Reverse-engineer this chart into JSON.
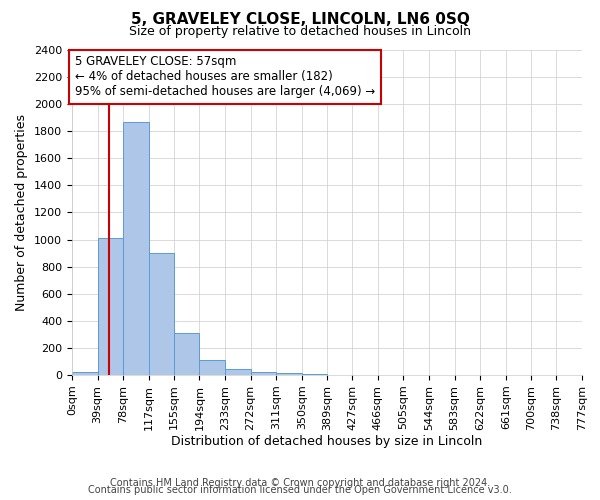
{
  "title": "5, GRAVELEY CLOSE, LINCOLN, LN6 0SQ",
  "subtitle": "Size of property relative to detached houses in Lincoln",
  "xlabel": "Distribution of detached houses by size in Lincoln",
  "ylabel": "Number of detached properties",
  "bin_edges": [
    0,
    39,
    78,
    117,
    155,
    194,
    233,
    272,
    311,
    350,
    389,
    427,
    466,
    505,
    544,
    583,
    622,
    661,
    700,
    738,
    777
  ],
  "bin_labels": [
    "0sqm",
    "39sqm",
    "78sqm",
    "117sqm",
    "155sqm",
    "194sqm",
    "233sqm",
    "272sqm",
    "311sqm",
    "350sqm",
    "389sqm",
    "427sqm",
    "466sqm",
    "505sqm",
    "544sqm",
    "583sqm",
    "622sqm",
    "661sqm",
    "700sqm",
    "738sqm",
    "777sqm"
  ],
  "bar_heights": [
    25,
    1010,
    1870,
    900,
    310,
    110,
    45,
    25,
    15,
    5,
    0,
    0,
    0,
    0,
    0,
    0,
    0,
    0,
    0,
    0
  ],
  "bar_color": "#aec6e8",
  "bar_edge_color": "#5b9bd5",
  "property_line_x": 57,
  "property_line_color": "#cc0000",
  "annotation_line1": "5 GRAVELEY CLOSE: 57sqm",
  "annotation_line2": "← 4% of detached houses are smaller (182)",
  "annotation_line3": "95% of semi-detached houses are larger (4,069) →",
  "annotation_box_color": "#cc0000",
  "ylim": [
    0,
    2400
  ],
  "yticks": [
    0,
    200,
    400,
    600,
    800,
    1000,
    1200,
    1400,
    1600,
    1800,
    2000,
    2200,
    2400
  ],
  "footer_line1": "Contains HM Land Registry data © Crown copyright and database right 2024.",
  "footer_line2": "Contains public sector information licensed under the Open Government Licence v3.0.",
  "background_color": "#ffffff",
  "grid_color": "#cccccc",
  "title_fontsize": 11,
  "subtitle_fontsize": 9,
  "axis_label_fontsize": 9,
  "tick_fontsize": 8,
  "footer_fontsize": 7,
  "annotation_fontsize": 8.5
}
